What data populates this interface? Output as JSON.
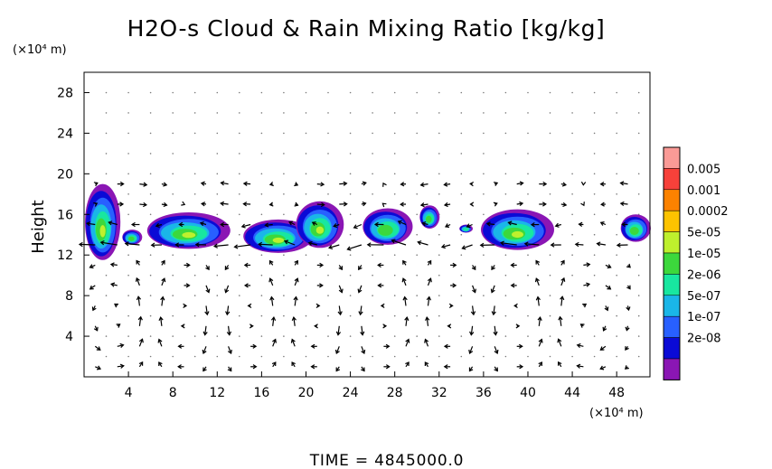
{
  "colors": {
    "axis": "#000000",
    "arrow": "#000000",
    "grid_dot": "#7a7a7a",
    "background": "#ffffff"
  },
  "chart_data": {
    "type": "heatmap",
    "title": "H2O-s Cloud & Rain Mixing Ratio [kg/kg]",
    "xlabel": "",
    "ylabel": "Height",
    "x_unit": "(×10⁴ m)",
    "y_unit": "(×10⁴ m)",
    "xlim": [
      0,
      51
    ],
    "ylim": [
      0,
      30
    ],
    "x_ticks": [
      4,
      8,
      12,
      16,
      20,
      24,
      28,
      32,
      36,
      40,
      44,
      48
    ],
    "y_ticks": [
      4,
      8,
      12,
      16,
      20,
      24,
      28
    ],
    "grid": "dotted",
    "legend_position": "right",
    "time_label": "TIME = 4845000.0",
    "colorbar": {
      "labels": [
        "0.005",
        "0.001",
        "0.0002",
        "5e-05",
        "1e-05",
        "2e-06",
        "5e-07",
        "1e-07",
        "2e-08"
      ],
      "colors": [
        "#fa9a96",
        "#f7413a",
        "#fc8200",
        "#fdc300",
        "#bef02d",
        "#3cd83c",
        "#18e7a0",
        "#1ab6e8",
        "#2860ff",
        "#0a0ad6",
        "#8a16b4"
      ]
    },
    "cloud_cells": [
      {
        "x0": 0.0,
        "x1": 3.2,
        "y0": 11.5,
        "y1": 19.0,
        "peak": "5e-05"
      },
      {
        "x0": 3.4,
        "x1": 5.2,
        "y0": 13.0,
        "y1": 14.5,
        "peak": "2e-06"
      },
      {
        "x0": 5.5,
        "x1": 13.0,
        "y0": 12.6,
        "y1": 16.2,
        "peak": "1e-05"
      },
      {
        "x0": 14.2,
        "x1": 20.5,
        "y0": 12.2,
        "y1": 15.5,
        "peak": "1e-05"
      },
      {
        "x0": 19.0,
        "x1": 23.3,
        "y0": 12.7,
        "y1": 17.3,
        "peak": "1e-05"
      },
      {
        "x0": 25.0,
        "x1": 29.5,
        "y0": 13.0,
        "y1": 16.6,
        "peak": "2e-06"
      },
      {
        "x0": 30.2,
        "x1": 32.0,
        "y0": 14.6,
        "y1": 16.9,
        "peak": "2e-06"
      },
      {
        "x0": 33.8,
        "x1": 35.0,
        "y0": 14.2,
        "y1": 15.0,
        "peak": "5e-07"
      },
      {
        "x0": 35.6,
        "x1": 42.2,
        "y0": 12.5,
        "y1": 16.5,
        "peak": "5e-05"
      },
      {
        "x0": 48.3,
        "x1": 51.0,
        "y0": 13.3,
        "y1": 16.0,
        "peak": "2e-06"
      }
    ],
    "wind_field": {
      "x_spacing": 2,
      "y_spacing": 2,
      "description": "velocity vectors showing circulation cells below ~12 km and strong horizontal flow near 13-15 km"
    }
  }
}
